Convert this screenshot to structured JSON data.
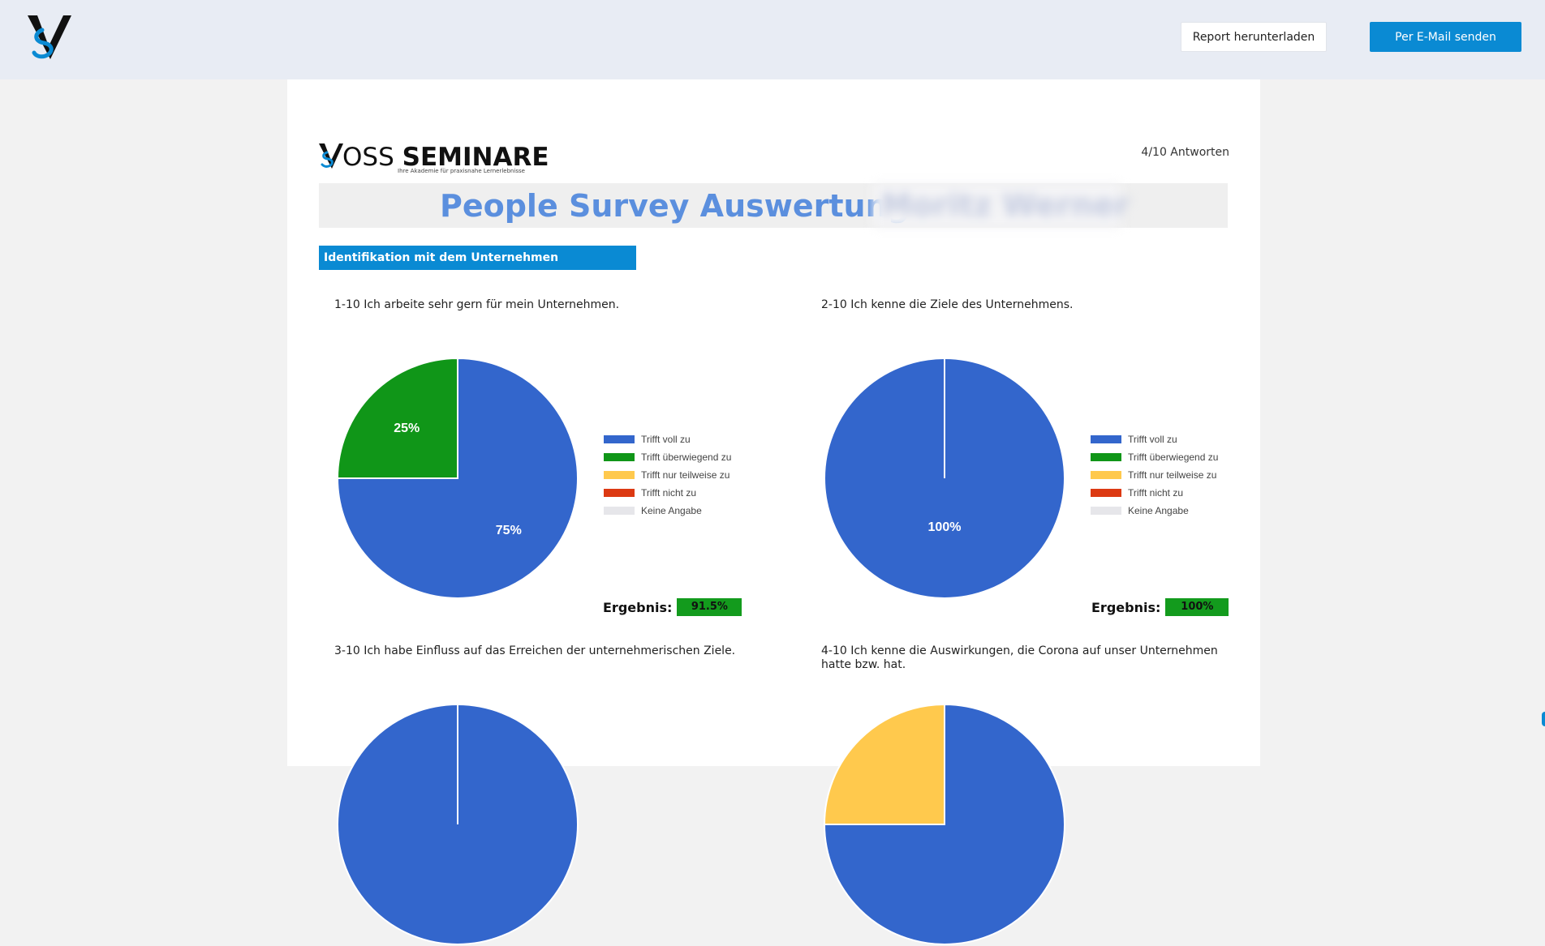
{
  "header": {
    "download_label": "Report herunterladen",
    "email_label": "Per E-Mail senden"
  },
  "report": {
    "brand_main": "OSS",
    "brand_bold": "SEMINARE",
    "brand_tagline": "Ihre Akademie für praxisnahe Lernerlebnisse",
    "responses": "4/10 Antworten",
    "title": "People Survey Auswertung",
    "name_redacted": "Moritz Werner",
    "section": "Identifikation mit dem Unternehmen"
  },
  "legend": [
    "Trifft voll zu",
    "Trifft überwiegend zu",
    "Trifft nur teilweise zu",
    "Trifft nicht zu",
    "Keine Angabe"
  ],
  "colors": {
    "voll": "#3366cc",
    "ueberwiegend": "#109618",
    "teilweise": "#ffc94d",
    "nicht": "#dc3912",
    "keine": "#e6e6ea",
    "accent": "#0a8ad3",
    "title": "#5b8fde"
  },
  "result_label": "Ergebnis:",
  "questions": [
    {
      "text": "1-10 Ich arbeite sehr gern für mein Unternehmen.",
      "result": "91.5%"
    },
    {
      "text": "2-10 Ich kenne die Ziele des Unternehmens.",
      "result": "100%"
    },
    {
      "text": "3-10 Ich habe Einfluss auf das Erreichen der unternehmerischen Ziele.",
      "result": ""
    },
    {
      "text": "4-10 Ich kenne die Auswirkungen, die Corona auf unser Unternehmen hatte bzw. hat.",
      "result": ""
    }
  ],
  "chart_data": [
    {
      "type": "pie",
      "title": "1-10 Ich arbeite sehr gern für mein Unternehmen.",
      "categories": [
        "Trifft voll zu",
        "Trifft überwiegend zu",
        "Trifft nur teilweise zu",
        "Trifft nicht zu",
        "Keine Angabe"
      ],
      "values": [
        75,
        25,
        0,
        0,
        0
      ],
      "labels": [
        "75%",
        "25%"
      ],
      "legend": "right"
    },
    {
      "type": "pie",
      "title": "2-10 Ich kenne die Ziele des Unternehmens.",
      "categories": [
        "Trifft voll zu",
        "Trifft überwiegend zu",
        "Trifft nur teilweise zu",
        "Trifft nicht zu",
        "Keine Angabe"
      ],
      "values": [
        100,
        0,
        0,
        0,
        0
      ],
      "labels": [
        "100%"
      ],
      "legend": "right"
    },
    {
      "type": "pie",
      "title": "3-10 Ich habe Einfluss auf das Erreichen der unternehmerischen Ziele.",
      "categories": [
        "Trifft voll zu",
        "Trifft überwiegend zu",
        "Trifft nur teilweise zu",
        "Trifft nicht zu",
        "Keine Angabe"
      ],
      "values": [
        100,
        0,
        0,
        0,
        0
      ],
      "labels": [],
      "legend": "right"
    },
    {
      "type": "pie",
      "title": "4-10 Ich kenne die Auswirkungen, die Corona auf unser Unternehmen hatte bzw. hat.",
      "categories": [
        "Trifft voll zu",
        "Trifft überwiegend zu",
        "Trifft nur teilweise zu",
        "Trifft nicht zu",
        "Keine Angabe"
      ],
      "values": [
        75,
        0,
        25,
        0,
        0
      ],
      "labels": [],
      "legend": "right"
    }
  ]
}
